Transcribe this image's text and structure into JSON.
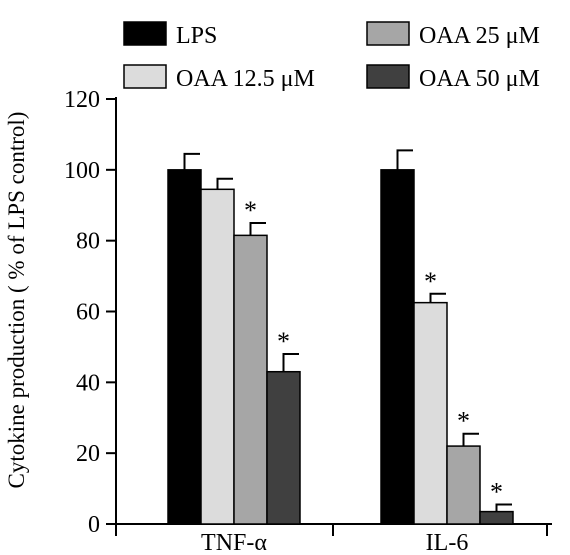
{
  "chart_data": {
    "type": "bar",
    "title": "",
    "xlabel": "",
    "ylabel": "Cytokine production ( % of LPS control)",
    "ylim": [
      0,
      120
    ],
    "yticks": [
      0,
      20,
      40,
      60,
      80,
      100,
      120
    ],
    "grid": false,
    "legend_position": "top",
    "categories": [
      "TNF-α",
      "IL-6"
    ],
    "series": [
      {
        "name": "LPS",
        "color": "#000000",
        "values": [
          100,
          100
        ],
        "errors": [
          4.5,
          5.5
        ],
        "significant": [
          false,
          false
        ]
      },
      {
        "name": "OAA 12.5 μM",
        "color": "#dcdcdc",
        "values": [
          94.5,
          62.5
        ],
        "errors": [
          3,
          2.5
        ],
        "significant": [
          false,
          true
        ]
      },
      {
        "name": "OAA 25 μM",
        "color": "#a6a6a6",
        "values": [
          81.5,
          22
        ],
        "errors": [
          3.5,
          3.5
        ],
        "significant": [
          true,
          true
        ]
      },
      {
        "name": "OAA 50 μM",
        "color": "#404040",
        "values": [
          43,
          3.5
        ],
        "errors": [
          5,
          2
        ],
        "significant": [
          true,
          true
        ]
      }
    ],
    "significance_marker": "*"
  }
}
